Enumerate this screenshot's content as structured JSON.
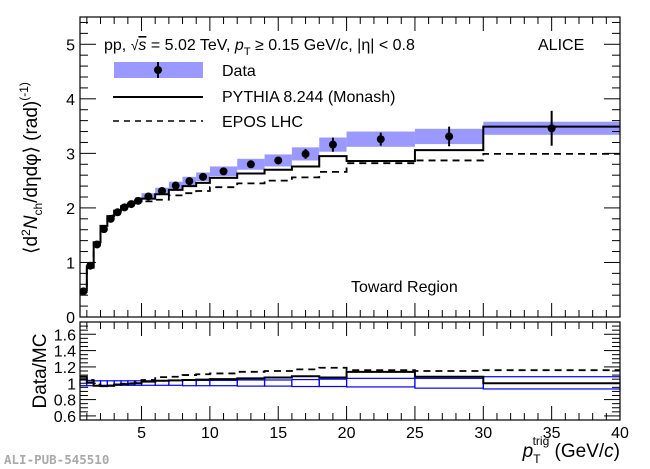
{
  "chart_data": [
    {
      "type": "line",
      "panel": "main",
      "title": "",
      "annotation": "pp, √s = 5.02 TeV, pT ≥ 0.15 GeV/c, |η| < 0.8",
      "experiment_label": "ALICE",
      "region_label": "Toward Region",
      "xlabel": "p_T^trig (GeV/c)",
      "ylabel": "⟨d²N_ch/dηdφ⟩ (rad)^(-1)",
      "xlim": [
        0.5,
        40
      ],
      "ylim": [
        0,
        5.5
      ],
      "yticks": [
        0,
        1,
        2,
        3,
        4,
        5
      ],
      "xticks": [
        5,
        10,
        15,
        20,
        25,
        30,
        35,
        40
      ],
      "legend": {
        "placement": "top-left",
        "entries": [
          {
            "name": "Data",
            "style": "marker-with-band"
          },
          {
            "name": "PYTHIA 8.244 (Monash)",
            "style": "solid"
          },
          {
            "name": "EPOS LHC",
            "style": "dashed"
          }
        ]
      },
      "bin_edges": [
        0.5,
        1.0,
        1.5,
        2.0,
        2.5,
        3.0,
        3.5,
        4.0,
        4.5,
        5.0,
        6.0,
        7.0,
        8.0,
        9.0,
        10.0,
        12.0,
        14.0,
        16.0,
        18.0,
        20.0,
        25.0,
        30.0,
        40.0
      ],
      "series": [
        {
          "name": "Data",
          "color": "#000000",
          "band_color": "#9999ff",
          "x": [
            0.75,
            1.25,
            1.75,
            2.25,
            2.75,
            3.25,
            3.75,
            4.25,
            4.75,
            5.5,
            6.5,
            7.5,
            8.5,
            9.5,
            11.0,
            13.0,
            15.0,
            17.0,
            19.0,
            22.5,
            27.5,
            35.0
          ],
          "values": [
            0.47,
            0.94,
            1.33,
            1.61,
            1.8,
            1.92,
            2.01,
            2.07,
            2.13,
            2.21,
            2.31,
            2.41,
            2.49,
            2.57,
            2.67,
            2.8,
            2.87,
            2.99,
            3.16,
            3.26,
            3.31,
            3.46
          ],
          "stat_err": [
            0.01,
            0.01,
            0.01,
            0.01,
            0.01,
            0.01,
            0.01,
            0.01,
            0.01,
            0.02,
            0.02,
            0.02,
            0.03,
            0.03,
            0.04,
            0.05,
            0.06,
            0.09,
            0.13,
            0.12,
            0.18,
            0.32
          ],
          "sys_err": [
            0.02,
            0.03,
            0.04,
            0.04,
            0.05,
            0.05,
            0.05,
            0.05,
            0.06,
            0.06,
            0.06,
            0.07,
            0.08,
            0.08,
            0.09,
            0.1,
            0.11,
            0.12,
            0.13,
            0.14,
            0.14,
            0.12
          ]
        },
        {
          "name": "PYTHIA 8.244 (Monash)",
          "color": "#000000",
          "style": "solid-step",
          "values": [
            0.49,
            0.93,
            1.37,
            1.67,
            1.85,
            1.95,
            2.03,
            2.08,
            2.12,
            2.17,
            2.25,
            2.33,
            2.4,
            2.46,
            2.55,
            2.63,
            2.7,
            2.76,
            2.95,
            2.86,
            3.06,
            3.49
          ]
        },
        {
          "name": "EPOS LHC",
          "color": "#000000",
          "style": "dashed-step",
          "values": [
            0.46,
            0.9,
            1.35,
            1.67,
            1.86,
            1.96,
            2.02,
            2.07,
            2.11,
            2.12,
            2.15,
            2.23,
            2.27,
            2.31,
            2.38,
            2.45,
            2.5,
            2.56,
            2.66,
            2.82,
            2.87,
            2.99
          ]
        }
      ]
    },
    {
      "type": "line",
      "panel": "ratio",
      "ylabel": "Data/MC",
      "xlabel": "p_T^trig (GeV/c)",
      "xlim": [
        0.5,
        40
      ],
      "ylim": [
        0.55,
        1.75
      ],
      "yticks": [
        0.6,
        0.8,
        1,
        1.2,
        1.4,
        1.6
      ],
      "ytick_labels": [
        "0.6",
        "0.8",
        "1",
        "1.2",
        "1.4",
        "1.6"
      ],
      "xticks": [
        5,
        10,
        15,
        20,
        25,
        30,
        35,
        40
      ],
      "bin_edges": [
        0.5,
        1.0,
        1.5,
        2.0,
        2.5,
        3.0,
        3.5,
        4.0,
        4.5,
        5.0,
        6.0,
        7.0,
        8.0,
        9.0,
        10.0,
        12.0,
        14.0,
        16.0,
        18.0,
        20.0,
        25.0,
        30.0,
        40.0
      ],
      "series": [
        {
          "name": "Data systematic band",
          "color": "#0000ff",
          "style": "box",
          "lower": [
            0.97,
            0.97,
            0.97,
            0.975,
            0.975,
            0.975,
            0.975,
            0.975,
            0.975,
            0.975,
            0.975,
            0.975,
            0.97,
            0.97,
            0.97,
            0.965,
            0.965,
            0.96,
            0.96,
            0.955,
            0.94,
            0.93
          ],
          "upper": [
            1.04,
            1.035,
            1.03,
            1.03,
            1.03,
            1.03,
            1.03,
            1.03,
            1.03,
            1.03,
            1.03,
            1.035,
            1.035,
            1.035,
            1.035,
            1.04,
            1.04,
            1.045,
            1.05,
            1.06,
            1.06,
            1.08
          ]
        },
        {
          "name": "Data/PYTHIA",
          "color": "#000000",
          "style": "solid-step",
          "values": [
            1.08,
            1.01,
            0.97,
            0.965,
            0.97,
            0.985,
            0.99,
            0.995,
            1.0,
            1.02,
            1.03,
            1.035,
            1.04,
            1.045,
            1.05,
            1.06,
            1.07,
            1.085,
            1.07,
            1.14,
            1.08,
            1.0
          ]
        },
        {
          "name": "Data/EPOS",
          "color": "#000000",
          "style": "dashed-step",
          "values": [
            1.05,
            1.04,
            0.985,
            0.965,
            0.97,
            0.98,
            0.995,
            1.0,
            1.01,
            1.04,
            1.075,
            1.08,
            1.1,
            1.11,
            1.12,
            1.14,
            1.15,
            1.17,
            1.19,
            1.16,
            1.15,
            1.16
          ]
        }
      ]
    }
  ],
  "watermark": "ALI-PUB-545510",
  "labels": {
    "ylabel_main": "⟨d²N_ch/dηdφ⟩ (rad)^(-1)",
    "ylabel_ratio": "Data/MC",
    "xlabel": "p_T^trig (GeV/c)"
  }
}
